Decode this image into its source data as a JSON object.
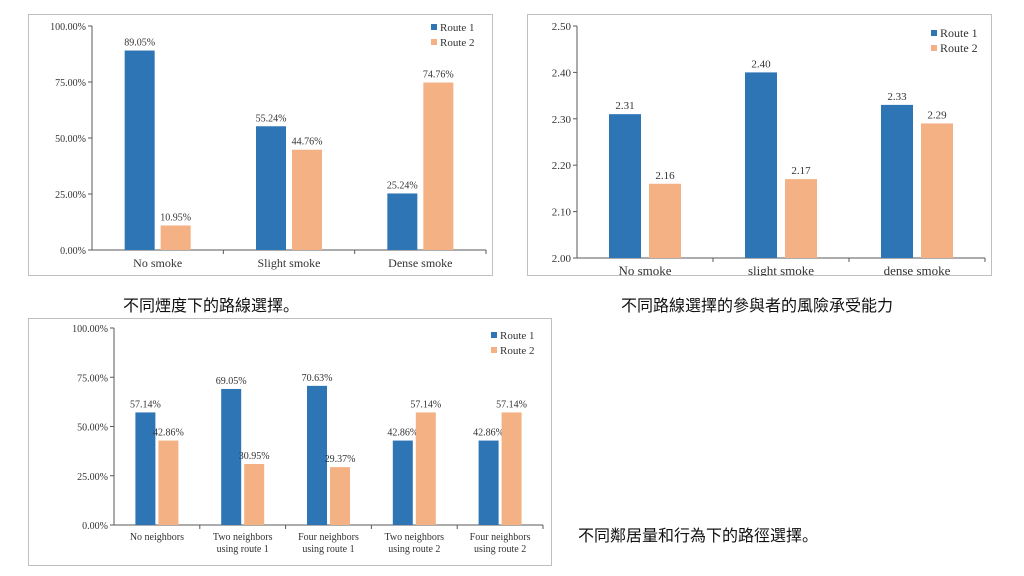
{
  "colors": {
    "route1": "#2e75b6",
    "route2": "#f4b183",
    "axis": "#595959",
    "border": "#bfbfbf"
  },
  "captions": {
    "chart1": "不同煙度下的路線選擇。",
    "chart2": "不同路線選擇的參與者的風險承受能力",
    "chart3": "不同鄰居量和行為下的路徑選擇。"
  },
  "chart_data": [
    {
      "type": "bar",
      "categories": [
        "No smoke",
        "Slight smoke",
        "Dense smoke"
      ],
      "series": [
        {
          "name": "Route 1",
          "values": [
            89.05,
            55.24,
            25.24
          ]
        },
        {
          "name": "Route 2",
          "values": [
            10.95,
            44.76,
            74.76
          ]
        }
      ],
      "ylim": [
        0,
        100
      ],
      "yticks": [
        0,
        25,
        50,
        75,
        100
      ],
      "ytick_labels": [
        "0.00%",
        "25.00%",
        "50.00%",
        "75.00%",
        "100.00%"
      ],
      "value_labels": [
        [
          "89.05%",
          "55.24%",
          "25.24%"
        ],
        [
          "10.95%",
          "44.76%",
          "74.76%"
        ]
      ],
      "legend": "top-right",
      "grid": false
    },
    {
      "type": "bar",
      "categories": [
        "No smoke",
        "slight smoke",
        "dense smoke"
      ],
      "series": [
        {
          "name": "Route 1",
          "values": [
            2.31,
            2.4,
            2.33
          ]
        },
        {
          "name": "Route 2",
          "values": [
            2.16,
            2.17,
            2.29
          ]
        }
      ],
      "ylim": [
        2.0,
        2.5
      ],
      "yticks": [
        2.0,
        2.1,
        2.2,
        2.3,
        2.4,
        2.5
      ],
      "ytick_labels": [
        "2.00",
        "2.10",
        "2.20",
        "2.30",
        "2.40",
        "2.50"
      ],
      "value_labels": [
        [
          "2.31",
          "2.40",
          "2.33"
        ],
        [
          "2.16",
          "2.17",
          "2.29"
        ]
      ],
      "legend": "top-right",
      "grid": false
    },
    {
      "type": "bar",
      "categories": [
        [
          "No neighbors"
        ],
        [
          "Two neighbors",
          "using route 1"
        ],
        [
          "Four neighbors",
          "using route 1"
        ],
        [
          "Two neighbors",
          "using route 2"
        ],
        [
          "Four neighbors",
          "using route 2"
        ]
      ],
      "series": [
        {
          "name": "Route 1",
          "values": [
            57.14,
            69.05,
            70.63,
            42.86,
            42.86
          ]
        },
        {
          "name": "Route 2",
          "values": [
            42.86,
            30.95,
            29.37,
            57.14,
            57.14
          ]
        }
      ],
      "ylim": [
        0,
        100
      ],
      "yticks": [
        0,
        25,
        50,
        75,
        100
      ],
      "ytick_labels": [
        "0.00%",
        "25.00%",
        "50.00%",
        "75.00%",
        "100.00%"
      ],
      "value_labels": [
        [
          "57.14%",
          "69.05%",
          "70.63%",
          "42.86%",
          "42.86%"
        ],
        [
          "42.86%",
          "30.95%",
          "29.37%",
          "57.14%",
          "57.14%"
        ]
      ],
      "legend": "top-right",
      "grid": false
    }
  ]
}
